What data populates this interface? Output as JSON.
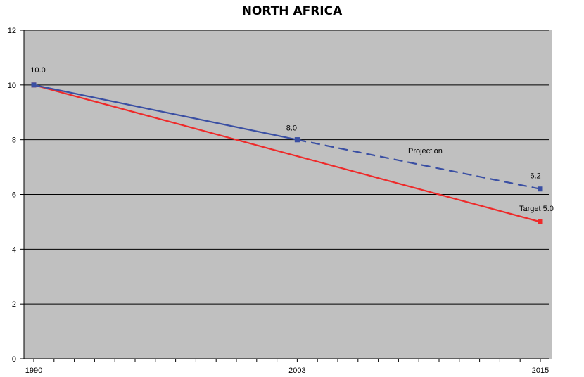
{
  "chart_data": {
    "type": "line",
    "title": "NORTH AFRICA",
    "xlabel": "",
    "ylabel": "",
    "x_ticks": [
      "1990",
      "2003",
      "2015"
    ],
    "x_range": [
      1990,
      2015
    ],
    "ylim": [
      0,
      12
    ],
    "y_ticks": [
      0,
      2,
      4,
      6,
      8,
      10,
      12
    ],
    "grid": true,
    "series": [
      {
        "key": "actual",
        "color": "#3a4fa3",
        "style": "solid",
        "points": [
          {
            "x": 1990,
            "y": 10.0
          },
          {
            "x": 2003,
            "y": 8.0
          }
        ]
      },
      {
        "key": "projection",
        "color": "#3a4fa3",
        "style": "dashed",
        "points": [
          {
            "x": 2003,
            "y": 8.0
          },
          {
            "x": 2015,
            "y": 6.2
          }
        ]
      },
      {
        "key": "target",
        "color": "#ee2a2a",
        "style": "solid",
        "points": [
          {
            "x": 1990,
            "y": 10.0
          },
          {
            "x": 2015,
            "y": 5.0
          }
        ]
      }
    ],
    "annotations": {
      "start": "10.0",
      "mid": "8.0",
      "projection": "Projection",
      "end_projection": "6.2",
      "target": "Target 5.0"
    },
    "colors": {
      "plot_background": "#c0c0c0",
      "grid": "#000000"
    }
  }
}
